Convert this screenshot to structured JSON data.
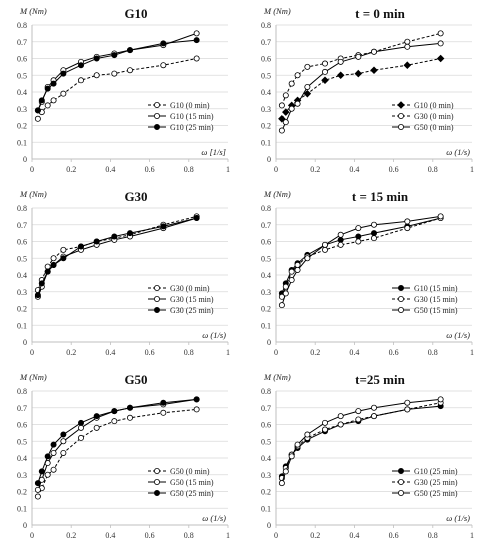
{
  "figure": {
    "colors": {
      "grid": "#d9d9d9",
      "axis": "#bfbfbf",
      "line": "#000000",
      "marker_fill_open": "#ffffff",
      "marker_fill_solid": "#000000"
    }
  },
  "chart_data": [
    {
      "type": "line",
      "title": "G10",
      "ylabel": "M (Nm)",
      "xlabel": "ω [1/s]",
      "xlim": [
        0,
        1
      ],
      "ylim": [
        0,
        0.8
      ],
      "xticks": [
        "0",
        "0.2",
        "0.4",
        "0.6",
        "0.8",
        "1"
      ],
      "yticks": [
        "0",
        "0.1",
        "0.2",
        "0.3",
        "0.4",
        "0.5",
        "0.6",
        "0.7",
        "0.8"
      ],
      "grid": true,
      "legend_position": "bottom-right",
      "series": [
        {
          "name": "G10 (0 min)",
          "dash": true,
          "marker": "open",
          "x": [
            0.03,
            0.05,
            0.08,
            0.11,
            0.16,
            0.25,
            0.33,
            0.42,
            0.5,
            0.67,
            0.84
          ],
          "y": [
            0.24,
            0.28,
            0.32,
            0.35,
            0.39,
            0.47,
            0.5,
            0.51,
            0.53,
            0.56,
            0.6
          ]
        },
        {
          "name": "G10 (15 min)",
          "dash": false,
          "marker": "open",
          "x": [
            0.03,
            0.05,
            0.08,
            0.11,
            0.16,
            0.25,
            0.33,
            0.42,
            0.5,
            0.67,
            0.84
          ],
          "y": [
            0.29,
            0.34,
            0.43,
            0.47,
            0.53,
            0.58,
            0.61,
            0.63,
            0.65,
            0.68,
            0.75
          ]
        },
        {
          "name": "G10 (25 min)",
          "dash": false,
          "marker": "solid",
          "x": [
            0.03,
            0.05,
            0.08,
            0.11,
            0.16,
            0.25,
            0.33,
            0.42,
            0.5,
            0.67,
            0.84
          ],
          "y": [
            0.29,
            0.35,
            0.42,
            0.45,
            0.51,
            0.56,
            0.6,
            0.62,
            0.65,
            0.69,
            0.71
          ]
        }
      ]
    },
    {
      "type": "line",
      "title": "t = 0 min",
      "ylabel": "M (Nm)",
      "xlabel": "ω (1/s)",
      "xlim": [
        0,
        1
      ],
      "ylim": [
        0,
        0.8
      ],
      "xticks": [
        "0",
        "0.2",
        "0.4",
        "0.6",
        "0.8",
        "1"
      ],
      "yticks": [
        "0",
        "0.1",
        "0.2",
        "0.3",
        "0.4",
        "0.5",
        "0.6",
        "0.7",
        "0.8"
      ],
      "grid": true,
      "legend_position": "bottom-right",
      "series": [
        {
          "name": "G10 (0 min)",
          "dash": true,
          "marker": "solid-diamond",
          "x": [
            0.03,
            0.05,
            0.08,
            0.11,
            0.16,
            0.25,
            0.33,
            0.42,
            0.5,
            0.67,
            0.84
          ],
          "y": [
            0.24,
            0.28,
            0.32,
            0.35,
            0.39,
            0.47,
            0.5,
            0.51,
            0.53,
            0.56,
            0.6
          ]
        },
        {
          "name": "G30 (0 min)",
          "dash": true,
          "marker": "open",
          "x": [
            0.03,
            0.05,
            0.08,
            0.11,
            0.16,
            0.25,
            0.33,
            0.42,
            0.5,
            0.67,
            0.84
          ],
          "y": [
            0.32,
            0.38,
            0.45,
            0.5,
            0.55,
            0.57,
            0.6,
            0.62,
            0.64,
            0.7,
            0.75
          ]
        },
        {
          "name": "G50 (0 min)",
          "dash": false,
          "marker": "open",
          "x": [
            0.03,
            0.05,
            0.08,
            0.11,
            0.16,
            0.25,
            0.33,
            0.42,
            0.5,
            0.67,
            0.84
          ],
          "y": [
            0.17,
            0.22,
            0.3,
            0.33,
            0.43,
            0.52,
            0.58,
            0.61,
            0.64,
            0.67,
            0.69
          ]
        }
      ]
    },
    {
      "type": "line",
      "title": "G30",
      "ylabel": "M (Nm)",
      "xlabel": "ω (1/s)",
      "xlim": [
        0,
        1
      ],
      "ylim": [
        0,
        0.8
      ],
      "xticks": [
        "0",
        "0.2",
        "0.4",
        "0.6",
        "0.8",
        "1"
      ],
      "yticks": [
        "0",
        "0.1",
        "0.2",
        "0.3",
        "0.4",
        "0.5",
        "0.6",
        "0.7",
        "0.8"
      ],
      "grid": true,
      "legend_position": "bottom-right",
      "series": [
        {
          "name": "G30 (0 min)",
          "dash": true,
          "marker": "open",
          "x": [
            0.03,
            0.05,
            0.08,
            0.11,
            0.16,
            0.25,
            0.33,
            0.42,
            0.5,
            0.67,
            0.84
          ],
          "y": [
            0.31,
            0.37,
            0.45,
            0.5,
            0.55,
            0.57,
            0.6,
            0.62,
            0.64,
            0.7,
            0.75
          ]
        },
        {
          "name": "G30 (15 min)",
          "dash": false,
          "marker": "open",
          "x": [
            0.03,
            0.05,
            0.08,
            0.11,
            0.16,
            0.25,
            0.33,
            0.42,
            0.5,
            0.67,
            0.84
          ],
          "y": [
            0.27,
            0.33,
            0.42,
            0.46,
            0.51,
            0.55,
            0.58,
            0.61,
            0.63,
            0.68,
            0.74
          ]
        },
        {
          "name": "G30 (25 min)",
          "dash": false,
          "marker": "solid",
          "x": [
            0.03,
            0.05,
            0.08,
            0.11,
            0.16,
            0.25,
            0.33,
            0.42,
            0.5,
            0.67,
            0.84
          ],
          "y": [
            0.28,
            0.35,
            0.42,
            0.46,
            0.5,
            0.57,
            0.6,
            0.63,
            0.65,
            0.69,
            0.74
          ]
        }
      ]
    },
    {
      "type": "line",
      "title": "t = 15 min",
      "ylabel": "M (Nm)",
      "xlabel": "ω (1/s)",
      "xlim": [
        0,
        1
      ],
      "ylim": [
        0,
        0.8
      ],
      "xticks": [
        "0",
        "0.2",
        "0.4",
        "0.6",
        "0.8",
        "1"
      ],
      "yticks": [
        "0",
        "0.1",
        "0.2",
        "0.3",
        "0.4",
        "0.5",
        "0.6",
        "0.7",
        "0.8"
      ],
      "grid": true,
      "legend_position": "bottom-right",
      "series": [
        {
          "name": "G10 (15 min)",
          "dash": false,
          "marker": "solid",
          "x": [
            0.03,
            0.05,
            0.08,
            0.11,
            0.16,
            0.25,
            0.33,
            0.42,
            0.5,
            0.67,
            0.84
          ],
          "y": [
            0.29,
            0.35,
            0.43,
            0.47,
            0.52,
            0.58,
            0.61,
            0.63,
            0.65,
            0.69,
            0.74
          ]
        },
        {
          "name": "G30 (15 min)",
          "dash": true,
          "marker": "open",
          "x": [
            0.03,
            0.05,
            0.08,
            0.11,
            0.16,
            0.25,
            0.33,
            0.42,
            0.5,
            0.67,
            0.84
          ],
          "y": [
            0.27,
            0.33,
            0.42,
            0.46,
            0.51,
            0.55,
            0.58,
            0.6,
            0.62,
            0.68,
            0.74
          ]
        },
        {
          "name": "G50 (15 min)",
          "dash": false,
          "marker": "open",
          "x": [
            0.03,
            0.05,
            0.08,
            0.11,
            0.16,
            0.25,
            0.33,
            0.42,
            0.5,
            0.67,
            0.84
          ],
          "y": [
            0.22,
            0.29,
            0.37,
            0.43,
            0.5,
            0.58,
            0.64,
            0.68,
            0.7,
            0.72,
            0.75
          ]
        }
      ]
    },
    {
      "type": "line",
      "title": "G50",
      "ylabel": "M (Nm)",
      "xlabel": "ω (1/s)",
      "xlim": [
        0,
        1
      ],
      "ylim": [
        0,
        0.8
      ],
      "xticks": [
        "0",
        "0.2",
        "0.4",
        "0.6",
        "0.8",
        "1"
      ],
      "yticks": [
        "0",
        "0.1",
        "0.2",
        "0.3",
        "0.4",
        "0.5",
        "0.6",
        "0.7",
        "0.8"
      ],
      "grid": true,
      "legend_position": "bottom-right",
      "series": [
        {
          "name": "G50 (0 min)",
          "dash": true,
          "marker": "open",
          "x": [
            0.03,
            0.05,
            0.08,
            0.11,
            0.16,
            0.25,
            0.33,
            0.42,
            0.5,
            0.67,
            0.84
          ],
          "y": [
            0.17,
            0.22,
            0.3,
            0.33,
            0.43,
            0.52,
            0.58,
            0.62,
            0.64,
            0.67,
            0.69
          ]
        },
        {
          "name": "G50 (15 min)",
          "dash": false,
          "marker": "open",
          "x": [
            0.03,
            0.05,
            0.08,
            0.11,
            0.16,
            0.25,
            0.33,
            0.42,
            0.5,
            0.67,
            0.84
          ],
          "y": [
            0.21,
            0.27,
            0.37,
            0.43,
            0.5,
            0.58,
            0.64,
            0.68,
            0.7,
            0.72,
            0.75
          ]
        },
        {
          "name": "G50 (25 min)",
          "dash": false,
          "marker": "solid",
          "x": [
            0.03,
            0.05,
            0.08,
            0.11,
            0.16,
            0.25,
            0.33,
            0.42,
            0.5,
            0.67,
            0.84
          ],
          "y": [
            0.25,
            0.32,
            0.41,
            0.48,
            0.54,
            0.61,
            0.65,
            0.68,
            0.7,
            0.73,
            0.75
          ]
        }
      ]
    },
    {
      "type": "line",
      "title": "t=25 min",
      "ylabel": "M (Nm)",
      "xlabel": "ω (1/s)",
      "xlim": [
        0,
        1
      ],
      "ylim": [
        0,
        0.8
      ],
      "xticks": [
        "0",
        "0.2",
        "0.4",
        "0.6",
        "0.8",
        "1"
      ],
      "yticks": [
        "0",
        "0.1",
        "0.2",
        "0.3",
        "0.4",
        "0.5",
        "0.6",
        "0.7",
        "0.8"
      ],
      "grid": true,
      "legend_position": "bottom-right",
      "series": [
        {
          "name": "G10 (25 min)",
          "dash": false,
          "marker": "solid",
          "x": [
            0.03,
            0.05,
            0.08,
            0.11,
            0.16,
            0.25,
            0.33,
            0.42,
            0.5,
            0.67,
            0.84
          ],
          "y": [
            0.29,
            0.35,
            0.42,
            0.46,
            0.51,
            0.56,
            0.6,
            0.62,
            0.65,
            0.69,
            0.71
          ]
        },
        {
          "name": "G30 (25 min)",
          "dash": true,
          "marker": "open",
          "x": [
            0.03,
            0.05,
            0.08,
            0.11,
            0.16,
            0.25,
            0.33,
            0.42,
            0.5,
            0.67,
            0.84
          ],
          "y": [
            0.28,
            0.34,
            0.42,
            0.47,
            0.52,
            0.57,
            0.6,
            0.63,
            0.65,
            0.69,
            0.73
          ]
        },
        {
          "name": "G50 (25 min)",
          "dash": false,
          "marker": "open",
          "x": [
            0.03,
            0.05,
            0.08,
            0.11,
            0.16,
            0.25,
            0.33,
            0.42,
            0.5,
            0.67,
            0.84
          ],
          "y": [
            0.25,
            0.32,
            0.41,
            0.48,
            0.54,
            0.61,
            0.65,
            0.68,
            0.7,
            0.73,
            0.75
          ]
        }
      ]
    }
  ]
}
